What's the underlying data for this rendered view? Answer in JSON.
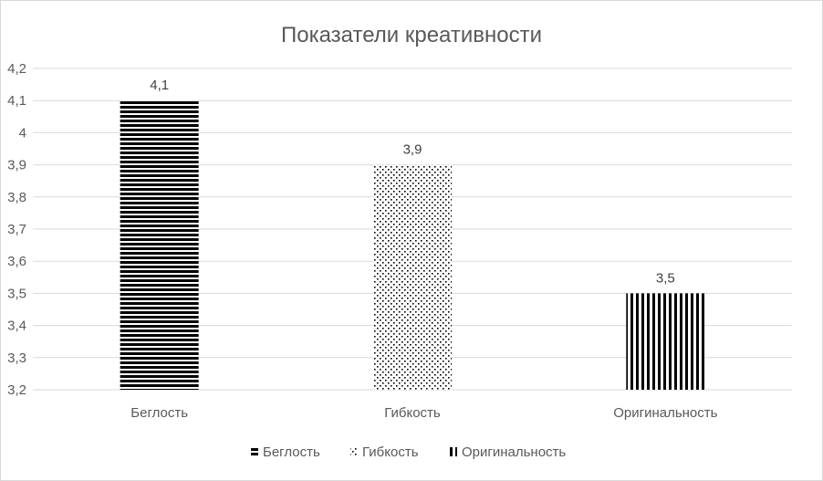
{
  "chart_data": {
    "type": "bar",
    "title": "Показатели креативности",
    "categories": [
      "Беглость",
      "Гибкость",
      "Оригинальность"
    ],
    "values": [
      4.1,
      3.9,
      3.5
    ],
    "data_labels": [
      "4,1",
      "3,9",
      "3,5"
    ],
    "ylim": [
      3.2,
      4.2
    ],
    "yticks": [
      "3,2",
      "3,3",
      "3,4",
      "3,5",
      "3,6",
      "3,7",
      "3,8",
      "3,9",
      "4",
      "4,1",
      "4,2"
    ],
    "grid": true,
    "legend_position": "bottom",
    "legend": [
      "Беглость",
      "Гибкость",
      "Оригинальность"
    ],
    "patterns": [
      "horizontal-stripes",
      "dots",
      "vertical-stripes"
    ],
    "colors": {
      "bar": "#000000",
      "grid": "#d9d9d9",
      "text": "#595959"
    }
  }
}
